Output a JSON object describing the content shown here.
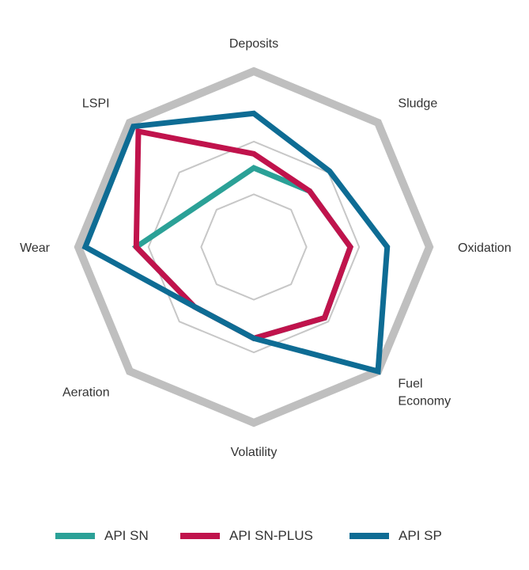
{
  "chart_data": {
    "type": "radar",
    "axes": [
      "Deposits",
      "Sludge",
      "Oxidation",
      "Fuel Economy",
      "Volatility",
      "Aeration",
      "Wear",
      "LSPI"
    ],
    "axis_label_lines": [
      [
        "Deposits"
      ],
      [
        "Sludge"
      ],
      [
        "Oxidation"
      ],
      [
        "Fuel",
        "Economy"
      ],
      [
        "Volatility"
      ],
      [
        "Aeration"
      ],
      [
        "Wear"
      ],
      [
        "LSPI"
      ]
    ],
    "levels": 3,
    "max": 1,
    "grid_color": "#c7c7c7",
    "outer_color": "#bfbfbf",
    "series": [
      {
        "name": "API SN",
        "color": "#2ba197",
        "values": [
          0.45,
          0.45,
          0.55,
          0.57,
          0.52,
          0.48,
          0.67,
          0.38
        ]
      },
      {
        "name": "API SN-PLUS",
        "color": "#c0134c",
        "values": [
          0.53,
          0.45,
          0.55,
          0.57,
          0.52,
          0.48,
          0.67,
          0.93
        ]
      },
      {
        "name": "API SP",
        "color": "#0e6c94",
        "values": [
          0.76,
          0.61,
          0.76,
          1.0,
          0.52,
          0.48,
          0.96,
          0.97
        ]
      }
    ]
  },
  "legend": {
    "items": [
      {
        "label": "API SN",
        "color": "#2ba197"
      },
      {
        "label": "API SN-PLUS",
        "color": "#c0134c"
      },
      {
        "label": "API SP",
        "color": "#0e6c94"
      }
    ]
  }
}
